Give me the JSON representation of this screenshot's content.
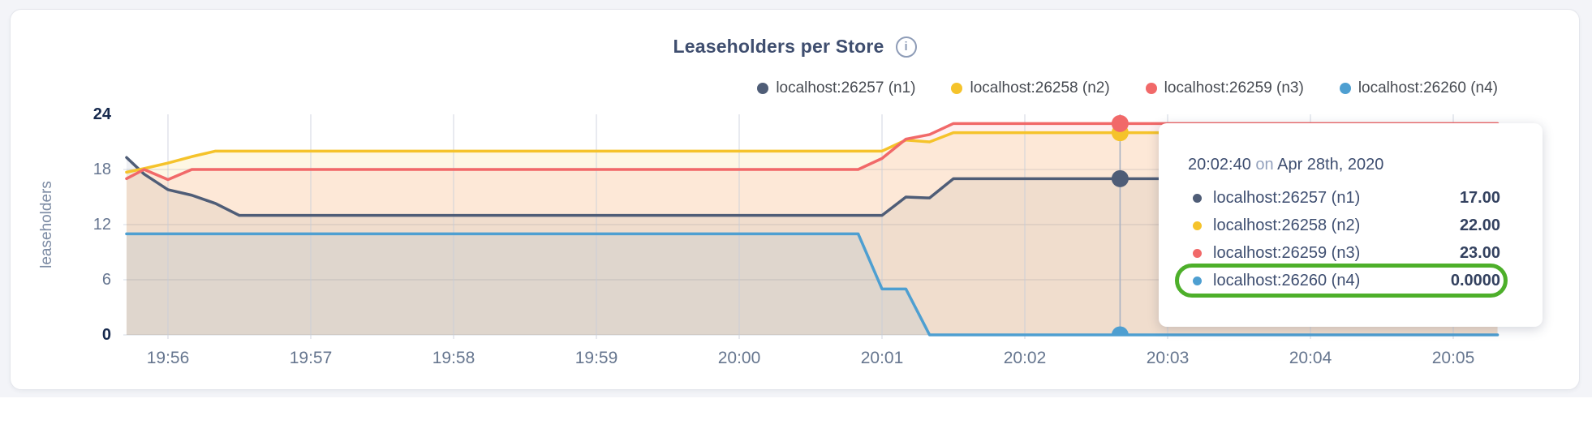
{
  "header": {
    "title": "Leaseholders per Store",
    "info_icon_glyph": "i"
  },
  "legend": {
    "items": [
      {
        "label": "localhost:26257 (n1)",
        "color": "#4F5D77"
      },
      {
        "label": "localhost:26258 (n2)",
        "color": "#F5C32B"
      },
      {
        "label": "localhost:26259 (n3)",
        "color": "#F16969"
      },
      {
        "label": "localhost:26260 (n4)",
        "color": "#4E9FD1"
      }
    ]
  },
  "tooltip": {
    "time": "20:02:40",
    "connector": "on",
    "date": "Apr 28th, 2020",
    "highlight_color": "#4daf2a",
    "rows": [
      {
        "label": "localhost:26257 (n1)",
        "value": "17.00",
        "color": "#4F5D77",
        "highlighted": false
      },
      {
        "label": "localhost:26258 (n2)",
        "value": "22.00",
        "color": "#F5C32B",
        "highlighted": false
      },
      {
        "label": "localhost:26259 (n3)",
        "value": "23.00",
        "color": "#F16969",
        "highlighted": false
      },
      {
        "label": "localhost:26260 (n4)",
        "value": "0.0000",
        "color": "#4E9FD1",
        "highlighted": true
      }
    ]
  },
  "chart_data": {
    "type": "area",
    "title": "Leaseholders per Store",
    "ylabel": "leaseholders",
    "ylim": [
      0,
      24
    ],
    "y_ticks": [
      {
        "value": 24,
        "bold": true
      },
      {
        "value": 18,
        "bold": false
      },
      {
        "value": 12,
        "bold": false
      },
      {
        "value": 6,
        "bold": false
      },
      {
        "value": 0,
        "bold": true
      }
    ],
    "x_tick_labels": [
      "19:56",
      "19:57",
      "19:58",
      "19:59",
      "20:00",
      "20:01",
      "20:02",
      "20:03",
      "20:04",
      "20:05"
    ],
    "x_minutes_range_rel_1956": [
      -0.29,
      9.31
    ],
    "grid": true,
    "legend_position": "top-right",
    "hover": {
      "t_minutes_rel_1956": 6.667,
      "time_label": "20:02:40 on Apr 28th, 2020",
      "values": [
        17,
        22,
        23,
        0
      ]
    },
    "series": [
      {
        "name": "localhost:26257 (n1)",
        "color": "#4F5D77",
        "fill_opacity": 0.09,
        "points": [
          [
            -0.29,
            19.3
          ],
          [
            -0.167,
            17.5
          ],
          [
            0,
            15.8
          ],
          [
            0.167,
            15.2
          ],
          [
            0.333,
            14.3
          ],
          [
            0.5,
            13
          ],
          [
            5,
            13
          ],
          [
            5.167,
            15
          ],
          [
            5.333,
            14.9
          ],
          [
            5.5,
            17
          ],
          [
            9.31,
            17
          ]
        ]
      },
      {
        "name": "localhost:26258 (n2)",
        "color": "#F5C32B",
        "fill_opacity": 0.13,
        "points": [
          [
            -0.29,
            17.7
          ],
          [
            -0.167,
            18.1
          ],
          [
            0,
            18.7
          ],
          [
            0.167,
            19.4
          ],
          [
            0.333,
            20
          ],
          [
            5,
            20
          ],
          [
            5.167,
            21.2
          ],
          [
            5.333,
            21
          ],
          [
            5.5,
            22
          ],
          [
            9.31,
            22
          ]
        ]
      },
      {
        "name": "localhost:26259 (n3)",
        "color": "#F16969",
        "fill_opacity": 0.1,
        "points": [
          [
            -0.29,
            17
          ],
          [
            -0.167,
            18
          ],
          [
            0,
            16.9
          ],
          [
            0.167,
            18
          ],
          [
            4.833,
            18
          ],
          [
            5,
            19.2
          ],
          [
            5.167,
            21.3
          ],
          [
            5.333,
            21.8
          ],
          [
            5.5,
            23
          ],
          [
            9.31,
            23
          ]
        ]
      },
      {
        "name": "localhost:26260 (n4)",
        "color": "#4E9FD1",
        "fill_opacity": 0.1,
        "points": [
          [
            -0.29,
            11
          ],
          [
            4.833,
            11
          ],
          [
            5,
            5
          ],
          [
            5.167,
            5
          ],
          [
            5.333,
            0
          ],
          [
            9.31,
            0
          ]
        ]
      }
    ]
  },
  "style_colors": {
    "grid": "#e4e7ee",
    "grid_over_fill": "#c7cedb",
    "hover_line": "#a9b2c2",
    "page_background": "#f3f4f8",
    "card_background": "#ffffff"
  }
}
